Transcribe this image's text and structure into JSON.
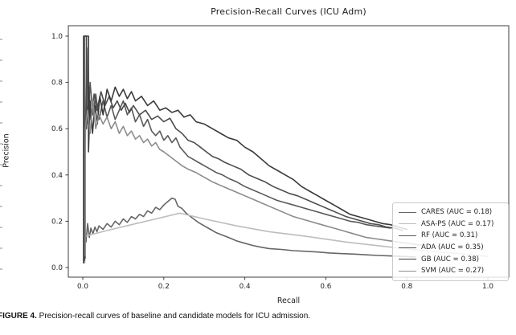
{
  "figure": {
    "caption_label": "FIGURE 4.",
    "caption_text": " Precision-recall curves of baseline and candidate models for ICU admission."
  },
  "chart_data": {
    "type": "line",
    "title": "Precision-Recall Curves (ICU Adm)",
    "xlabel": "Recall",
    "ylabel": "Precision",
    "xlim": [
      -0.05,
      1.05
    ],
    "ylim": [
      -0.05,
      1.05
    ],
    "grid": false,
    "legend_position": "lower right",
    "x_ticks": [
      0.0,
      0.2,
      0.4,
      0.6,
      0.8,
      1.0
    ],
    "y_ticks": [
      0.0,
      0.2,
      0.4,
      0.6,
      0.8,
      1.0
    ],
    "series": [
      {
        "name": "CARES",
        "auc": 0.18,
        "legend_label": "CARES (AUC = 0.18)",
        "color": "#666666",
        "points": [
          [
            0.004,
            0.02
          ],
          [
            0.004,
            0.17
          ],
          [
            0.008,
            0.11
          ],
          [
            0.012,
            0.19
          ],
          [
            0.016,
            0.13
          ],
          [
            0.02,
            0.17
          ],
          [
            0.025,
            0.145
          ],
          [
            0.03,
            0.175
          ],
          [
            0.035,
            0.155
          ],
          [
            0.04,
            0.18
          ],
          [
            0.05,
            0.165
          ],
          [
            0.06,
            0.19
          ],
          [
            0.07,
            0.175
          ],
          [
            0.08,
            0.2
          ],
          [
            0.09,
            0.185
          ],
          [
            0.1,
            0.21
          ],
          [
            0.11,
            0.195
          ],
          [
            0.12,
            0.22
          ],
          [
            0.13,
            0.21
          ],
          [
            0.14,
            0.23
          ],
          [
            0.15,
            0.22
          ],
          [
            0.16,
            0.245
          ],
          [
            0.17,
            0.235
          ],
          [
            0.18,
            0.26
          ],
          [
            0.19,
            0.25
          ],
          [
            0.2,
            0.27
          ],
          [
            0.21,
            0.285
          ],
          [
            0.22,
            0.3
          ],
          [
            0.228,
            0.295
          ],
          [
            0.235,
            0.265
          ],
          [
            0.245,
            0.255
          ],
          [
            0.255,
            0.235
          ],
          [
            0.27,
            0.215
          ],
          [
            0.285,
            0.195
          ],
          [
            0.3,
            0.18
          ],
          [
            0.315,
            0.165
          ],
          [
            0.33,
            0.15
          ],
          [
            0.345,
            0.14
          ],
          [
            0.36,
            0.13
          ],
          [
            0.38,
            0.115
          ],
          [
            0.4,
            0.105
          ],
          [
            0.42,
            0.095
          ],
          [
            0.44,
            0.088
          ],
          [
            0.46,
            0.082
          ],
          [
            0.49,
            0.078
          ],
          [
            0.52,
            0.073
          ],
          [
            0.55,
            0.07
          ],
          [
            0.58,
            0.067
          ],
          [
            0.61,
            0.063
          ],
          [
            0.64,
            0.06
          ],
          [
            0.67,
            0.058
          ],
          [
            0.7,
            0.055
          ],
          [
            0.73,
            0.052
          ],
          [
            0.76,
            0.05
          ],
          [
            0.79,
            0.048
          ],
          [
            0.82,
            0.046
          ]
        ]
      },
      {
        "name": "ASA-PS",
        "auc": 0.17,
        "legend_label": "ASA-PS (AUC = 0.17)",
        "color": "#bdbdbd",
        "points": [
          [
            0.005,
            0.02
          ],
          [
            0.005,
            0.135
          ],
          [
            0.06,
            0.16
          ],
          [
            0.12,
            0.185
          ],
          [
            0.18,
            0.21
          ],
          [
            0.24,
            0.235
          ],
          [
            0.3,
            0.21
          ],
          [
            0.38,
            0.18
          ],
          [
            0.46,
            0.155
          ],
          [
            0.55,
            0.135
          ],
          [
            0.65,
            0.11
          ],
          [
            0.75,
            0.09
          ],
          [
            0.85,
            0.072
          ],
          [
            0.93,
            0.06
          ],
          [
            1.0,
            0.048
          ]
        ]
      },
      {
        "name": "RF",
        "auc": 0.31,
        "legend_label": "RF (AUC = 0.31)",
        "color": "#595959",
        "points": [
          [
            0.006,
            0.04
          ],
          [
            0.006,
            0.52
          ],
          [
            0.01,
            0.95
          ],
          [
            0.013,
            0.62
          ],
          [
            0.018,
            0.8
          ],
          [
            0.025,
            0.66
          ],
          [
            0.032,
            0.75
          ],
          [
            0.04,
            0.64
          ],
          [
            0.05,
            0.72
          ],
          [
            0.06,
            0.65
          ],
          [
            0.07,
            0.7
          ],
          [
            0.08,
            0.64
          ],
          [
            0.09,
            0.68
          ],
          [
            0.1,
            0.72
          ],
          [
            0.11,
            0.66
          ],
          [
            0.12,
            0.69
          ],
          [
            0.13,
            0.63
          ],
          [
            0.14,
            0.66
          ],
          [
            0.15,
            0.61
          ],
          [
            0.16,
            0.64
          ],
          [
            0.17,
            0.59
          ],
          [
            0.18,
            0.57
          ],
          [
            0.19,
            0.59
          ],
          [
            0.2,
            0.55
          ],
          [
            0.21,
            0.57
          ],
          [
            0.22,
            0.54
          ],
          [
            0.23,
            0.56
          ],
          [
            0.24,
            0.52
          ],
          [
            0.25,
            0.5
          ],
          [
            0.26,
            0.48
          ],
          [
            0.27,
            0.47
          ],
          [
            0.285,
            0.455
          ],
          [
            0.3,
            0.44
          ],
          [
            0.315,
            0.425
          ],
          [
            0.33,
            0.41
          ],
          [
            0.345,
            0.4
          ],
          [
            0.36,
            0.385
          ],
          [
            0.38,
            0.37
          ],
          [
            0.4,
            0.35
          ],
          [
            0.42,
            0.335
          ],
          [
            0.44,
            0.32
          ],
          [
            0.46,
            0.305
          ],
          [
            0.48,
            0.29
          ],
          [
            0.5,
            0.28
          ],
          [
            0.52,
            0.27
          ],
          [
            0.54,
            0.26
          ],
          [
            0.56,
            0.25
          ],
          [
            0.58,
            0.24
          ],
          [
            0.6,
            0.23
          ],
          [
            0.62,
            0.22
          ],
          [
            0.64,
            0.21
          ],
          [
            0.66,
            0.2
          ],
          [
            0.68,
            0.195
          ],
          [
            0.7,
            0.185
          ],
          [
            0.72,
            0.18
          ],
          [
            0.74,
            0.175
          ],
          [
            0.76,
            0.17
          ]
        ]
      },
      {
        "name": "ADA",
        "auc": 0.35,
        "legend_label": "ADA (AUC = 0.35)",
        "color": "#4d4d4d",
        "points": [
          [
            0.004,
            0.03
          ],
          [
            0.004,
            1.0
          ],
          [
            0.009,
            1.0
          ],
          [
            0.009,
            0.6
          ],
          [
            0.015,
            0.78
          ],
          [
            0.02,
            0.64
          ],
          [
            0.028,
            0.75
          ],
          [
            0.035,
            0.68
          ],
          [
            0.045,
            0.76
          ],
          [
            0.055,
            0.7
          ],
          [
            0.065,
            0.74
          ],
          [
            0.075,
            0.69
          ],
          [
            0.085,
            0.72
          ],
          [
            0.095,
            0.68
          ],
          [
            0.105,
            0.71
          ],
          [
            0.115,
            0.67
          ],
          [
            0.125,
            0.7
          ],
          [
            0.14,
            0.66
          ],
          [
            0.155,
            0.68
          ],
          [
            0.17,
            0.64
          ],
          [
            0.185,
            0.655
          ],
          [
            0.2,
            0.63
          ],
          [
            0.215,
            0.645
          ],
          [
            0.23,
            0.6
          ],
          [
            0.245,
            0.58
          ],
          [
            0.26,
            0.55
          ],
          [
            0.275,
            0.54
          ],
          [
            0.29,
            0.52
          ],
          [
            0.305,
            0.5
          ],
          [
            0.32,
            0.48
          ],
          [
            0.335,
            0.47
          ],
          [
            0.35,
            0.455
          ],
          [
            0.37,
            0.44
          ],
          [
            0.39,
            0.425
          ],
          [
            0.41,
            0.4
          ],
          [
            0.43,
            0.385
          ],
          [
            0.45,
            0.37
          ],
          [
            0.47,
            0.35
          ],
          [
            0.49,
            0.335
          ],
          [
            0.51,
            0.32
          ],
          [
            0.53,
            0.31
          ],
          [
            0.55,
            0.295
          ],
          [
            0.57,
            0.28
          ],
          [
            0.59,
            0.265
          ],
          [
            0.61,
            0.25
          ],
          [
            0.63,
            0.235
          ],
          [
            0.65,
            0.22
          ],
          [
            0.67,
            0.21
          ],
          [
            0.69,
            0.2
          ],
          [
            0.71,
            0.19
          ],
          [
            0.73,
            0.185
          ],
          [
            0.75,
            0.175
          ],
          [
            0.77,
            0.17
          ],
          [
            0.79,
            0.16
          ]
        ]
      },
      {
        "name": "GB",
        "auc": 0.38,
        "legend_label": "GB (AUC = 0.38)",
        "color": "#3a3a3a",
        "points": [
          [
            0.002,
            0.02
          ],
          [
            0.002,
            1.0
          ],
          [
            0.014,
            1.0
          ],
          [
            0.014,
            0.5
          ],
          [
            0.018,
            0.72
          ],
          [
            0.024,
            0.58
          ],
          [
            0.03,
            0.7
          ],
          [
            0.036,
            0.62
          ],
          [
            0.042,
            0.74
          ],
          [
            0.05,
            0.66
          ],
          [
            0.06,
            0.77
          ],
          [
            0.07,
            0.72
          ],
          [
            0.08,
            0.78
          ],
          [
            0.09,
            0.74
          ],
          [
            0.1,
            0.77
          ],
          [
            0.11,
            0.73
          ],
          [
            0.12,
            0.76
          ],
          [
            0.13,
            0.72
          ],
          [
            0.145,
            0.74
          ],
          [
            0.16,
            0.7
          ],
          [
            0.175,
            0.72
          ],
          [
            0.19,
            0.68
          ],
          [
            0.205,
            0.69
          ],
          [
            0.22,
            0.67
          ],
          [
            0.235,
            0.68
          ],
          [
            0.25,
            0.65
          ],
          [
            0.265,
            0.66
          ],
          [
            0.28,
            0.63
          ],
          [
            0.3,
            0.62
          ],
          [
            0.32,
            0.6
          ],
          [
            0.34,
            0.58
          ],
          [
            0.36,
            0.56
          ],
          [
            0.38,
            0.55
          ],
          [
            0.4,
            0.52
          ],
          [
            0.42,
            0.5
          ],
          [
            0.44,
            0.47
          ],
          [
            0.46,
            0.44
          ],
          [
            0.48,
            0.42
          ],
          [
            0.5,
            0.4
          ],
          [
            0.52,
            0.38
          ],
          [
            0.54,
            0.35
          ],
          [
            0.56,
            0.33
          ],
          [
            0.58,
            0.31
          ],
          [
            0.6,
            0.29
          ],
          [
            0.62,
            0.27
          ],
          [
            0.64,
            0.25
          ],
          [
            0.66,
            0.23
          ],
          [
            0.68,
            0.22
          ],
          [
            0.7,
            0.21
          ],
          [
            0.72,
            0.2
          ],
          [
            0.74,
            0.19
          ],
          [
            0.76,
            0.185
          ],
          [
            0.78,
            0.175
          ],
          [
            0.8,
            0.165
          ]
        ]
      },
      {
        "name": "SVM",
        "auc": 0.27,
        "legend_label": "SVM (AUC = 0.27)",
        "color": "#8c8c8c",
        "points": [
          [
            0.006,
            0.05
          ],
          [
            0.006,
            0.6
          ],
          [
            0.012,
            0.68
          ],
          [
            0.018,
            0.58
          ],
          [
            0.025,
            0.72
          ],
          [
            0.032,
            0.6
          ],
          [
            0.04,
            0.66
          ],
          [
            0.05,
            0.62
          ],
          [
            0.06,
            0.65
          ],
          [
            0.07,
            0.6
          ],
          [
            0.08,
            0.63
          ],
          [
            0.09,
            0.58
          ],
          [
            0.1,
            0.61
          ],
          [
            0.11,
            0.57
          ],
          [
            0.12,
            0.59
          ],
          [
            0.13,
            0.555
          ],
          [
            0.14,
            0.57
          ],
          [
            0.15,
            0.54
          ],
          [
            0.16,
            0.555
          ],
          [
            0.17,
            0.525
          ],
          [
            0.18,
            0.54
          ],
          [
            0.19,
            0.51
          ],
          [
            0.2,
            0.5
          ],
          [
            0.215,
            0.48
          ],
          [
            0.23,
            0.46
          ],
          [
            0.245,
            0.44
          ],
          [
            0.26,
            0.425
          ],
          [
            0.28,
            0.41
          ],
          [
            0.3,
            0.39
          ],
          [
            0.32,
            0.37
          ],
          [
            0.34,
            0.355
          ],
          [
            0.36,
            0.34
          ],
          [
            0.38,
            0.325
          ],
          [
            0.4,
            0.31
          ],
          [
            0.42,
            0.295
          ],
          [
            0.44,
            0.28
          ],
          [
            0.46,
            0.265
          ],
          [
            0.48,
            0.25
          ],
          [
            0.5,
            0.235
          ],
          [
            0.52,
            0.22
          ],
          [
            0.54,
            0.21
          ],
          [
            0.56,
            0.2
          ],
          [
            0.58,
            0.19
          ],
          [
            0.6,
            0.18
          ],
          [
            0.62,
            0.17
          ],
          [
            0.64,
            0.16
          ],
          [
            0.66,
            0.15
          ],
          [
            0.68,
            0.14
          ],
          [
            0.7,
            0.13
          ],
          [
            0.72,
            0.125
          ],
          [
            0.74,
            0.12
          ],
          [
            0.76,
            0.115
          ],
          [
            0.78,
            0.11
          ],
          [
            0.8,
            0.105
          ],
          [
            0.82,
            0.1
          ],
          [
            0.84,
            0.095
          ]
        ]
      }
    ]
  }
}
